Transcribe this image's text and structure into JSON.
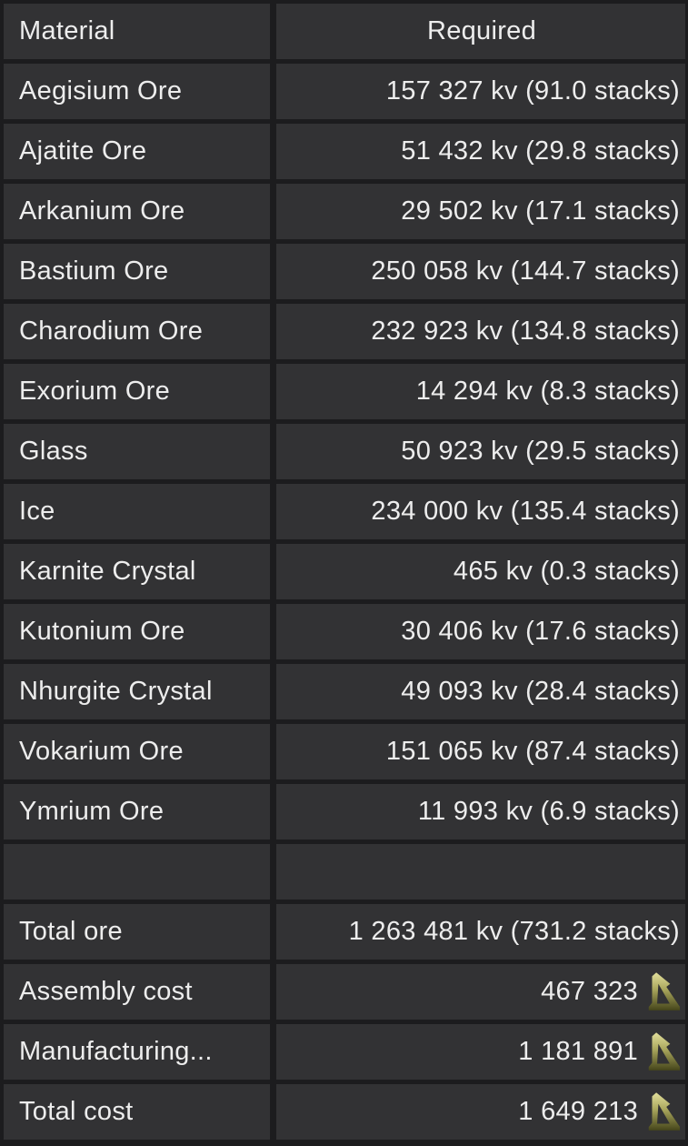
{
  "theme": {
    "grid_bg": "#1c1c1e",
    "cell_bg": "#323234",
    "text": "#ededed",
    "credit_icon_top": "#e2df9c",
    "credit_icon_bottom": "#45451a"
  },
  "table": {
    "columns": [
      "Material",
      "Required"
    ],
    "currency_icon_name": "credits-icon",
    "rows": [
      {
        "material": "Aegisium Ore",
        "required": "157 327 kv (91.0 stacks)",
        "currency": false
      },
      {
        "material": "Ajatite Ore",
        "required": "51 432 kv (29.8 stacks)",
        "currency": false
      },
      {
        "material": "Arkanium Ore",
        "required": "29 502 kv (17.1 stacks)",
        "currency": false
      },
      {
        "material": "Bastium Ore",
        "required": "250 058 kv (144.7 stacks)",
        "currency": false
      },
      {
        "material": "Charodium Ore",
        "required": "232 923 kv (134.8 stacks)",
        "currency": false
      },
      {
        "material": "Exorium Ore",
        "required": "14 294 kv (8.3 stacks)",
        "currency": false
      },
      {
        "material": "Glass",
        "required": "50 923 kv (29.5 stacks)",
        "currency": false
      },
      {
        "material": "Ice",
        "required": "234 000 kv (135.4 stacks)",
        "currency": false
      },
      {
        "material": "Karnite Crystal",
        "required": "465 kv (0.3 stacks)",
        "currency": false
      },
      {
        "material": "Kutonium Ore",
        "required": "30 406 kv (17.6 stacks)",
        "currency": false
      },
      {
        "material": "Nhurgite Crystal",
        "required": "49 093 kv (28.4 stacks)",
        "currency": false
      },
      {
        "material": "Vokarium Ore",
        "required": "151 065 kv (87.4 stacks)",
        "currency": false
      },
      {
        "material": "Ymrium Ore",
        "required": "11 993 kv (6.9 stacks)",
        "currency": false
      },
      {
        "material": "",
        "required": "",
        "currency": false
      },
      {
        "material": "Total ore",
        "required": "1 263 481 kv (731.2 stacks)",
        "currency": false
      },
      {
        "material": "Assembly cost",
        "required": "467 323",
        "currency": true
      },
      {
        "material": "Manufacturing...",
        "required": "1 181 891",
        "currency": true
      },
      {
        "material": "Total cost",
        "required": "1 649 213",
        "currency": true
      }
    ]
  }
}
